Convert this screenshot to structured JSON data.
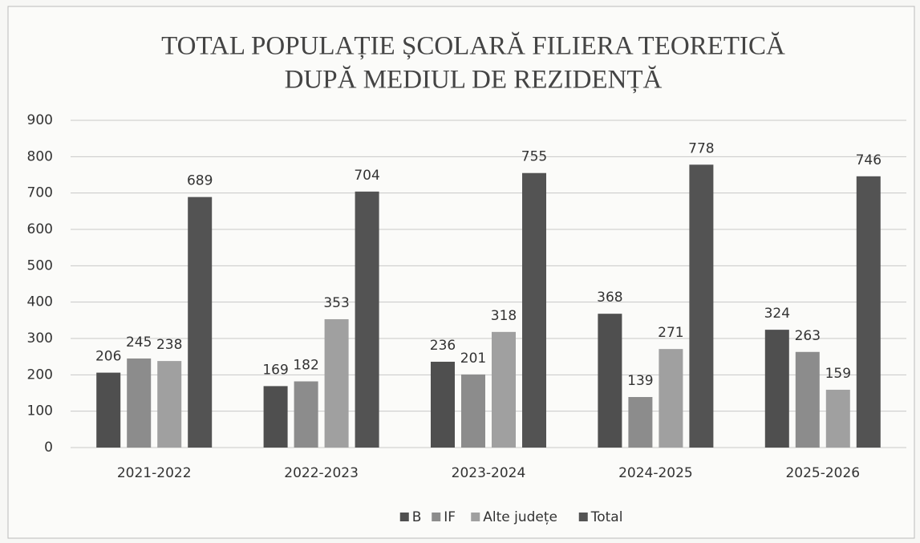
{
  "chart_data": {
    "type": "bar",
    "title": [
      "TOTAL POPULAȚIE ȘCOLARĂ FILIERA TEORETICĂ",
      "DUPĂ MEDIUL DE REZIDENȚĂ"
    ],
    "categories": [
      "2021-2022",
      "2022-2023",
      "2023-2024",
      "2024-2025",
      "2025-2026"
    ],
    "series": [
      {
        "name": "B",
        "color": "#4f4f4f",
        "values": [
          206,
          169,
          236,
          368,
          324
        ]
      },
      {
        "name": "IF",
        "color": "#8c8c8c",
        "values": [
          245,
          182,
          201,
          139,
          263
        ]
      },
      {
        "name": "Alte județe",
        "color": "#a0a0a0",
        "values": [
          238,
          353,
          318,
          271,
          159
        ]
      },
      {
        "name": "Total",
        "color": "#535353",
        "values": [
          689,
          704,
          755,
          778,
          746
        ]
      }
    ],
    "ylim": [
      0,
      900
    ],
    "yticks": [
      0,
      100,
      200,
      300,
      400,
      500,
      600,
      700,
      800,
      900
    ],
    "grid": true,
    "legend": "bottom"
  }
}
